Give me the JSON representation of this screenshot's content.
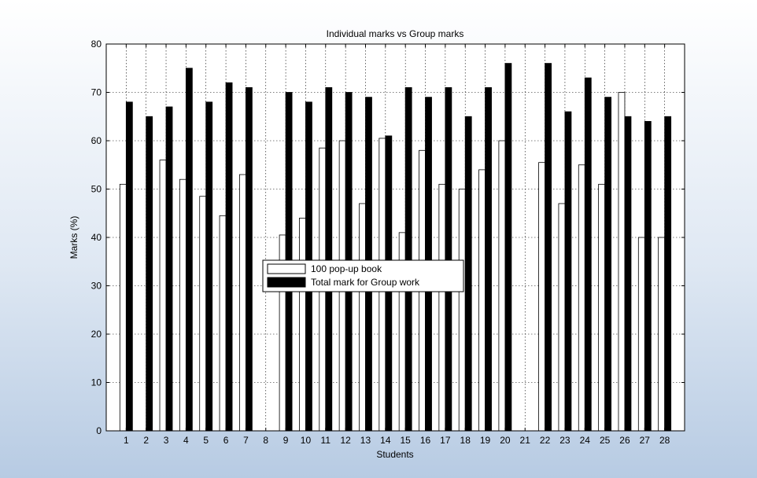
{
  "chart_data": {
    "type": "bar",
    "title": "Individual marks vs Group marks",
    "xlabel": "Students",
    "ylabel": "Marks (%)",
    "ylim": [
      0,
      80
    ],
    "yticks": [
      0,
      10,
      20,
      30,
      40,
      50,
      60,
      70,
      80
    ],
    "grid": true,
    "legend_position": "center",
    "categories": [
      "1",
      "2",
      "3",
      "4",
      "5",
      "6",
      "7",
      "8",
      "9",
      "10",
      "11",
      "12",
      "13",
      "14",
      "15",
      "16",
      "17",
      "18",
      "19",
      "20",
      "21",
      "22",
      "23",
      "24",
      "25",
      "26",
      "27",
      "28"
    ],
    "series": [
      {
        "name": "100 pop-up book",
        "color": "#ffffff",
        "values": [
          51,
          0,
          56,
          52,
          48.5,
          44.5,
          53,
          0,
          40.5,
          44,
          58.5,
          60,
          47,
          60.5,
          41,
          58,
          51,
          50,
          54,
          60,
          0,
          55.5,
          47,
          55,
          51,
          70,
          40,
          40
        ]
      },
      {
        "name": "Total mark for Group work",
        "color": "#000000",
        "values": [
          68,
          65,
          67,
          75,
          68,
          72,
          71,
          0,
          70,
          68,
          71,
          70,
          69,
          61,
          71,
          69,
          71,
          65,
          71,
          76,
          0,
          76,
          66,
          73,
          69,
          65,
          64,
          65
        ]
      }
    ]
  }
}
